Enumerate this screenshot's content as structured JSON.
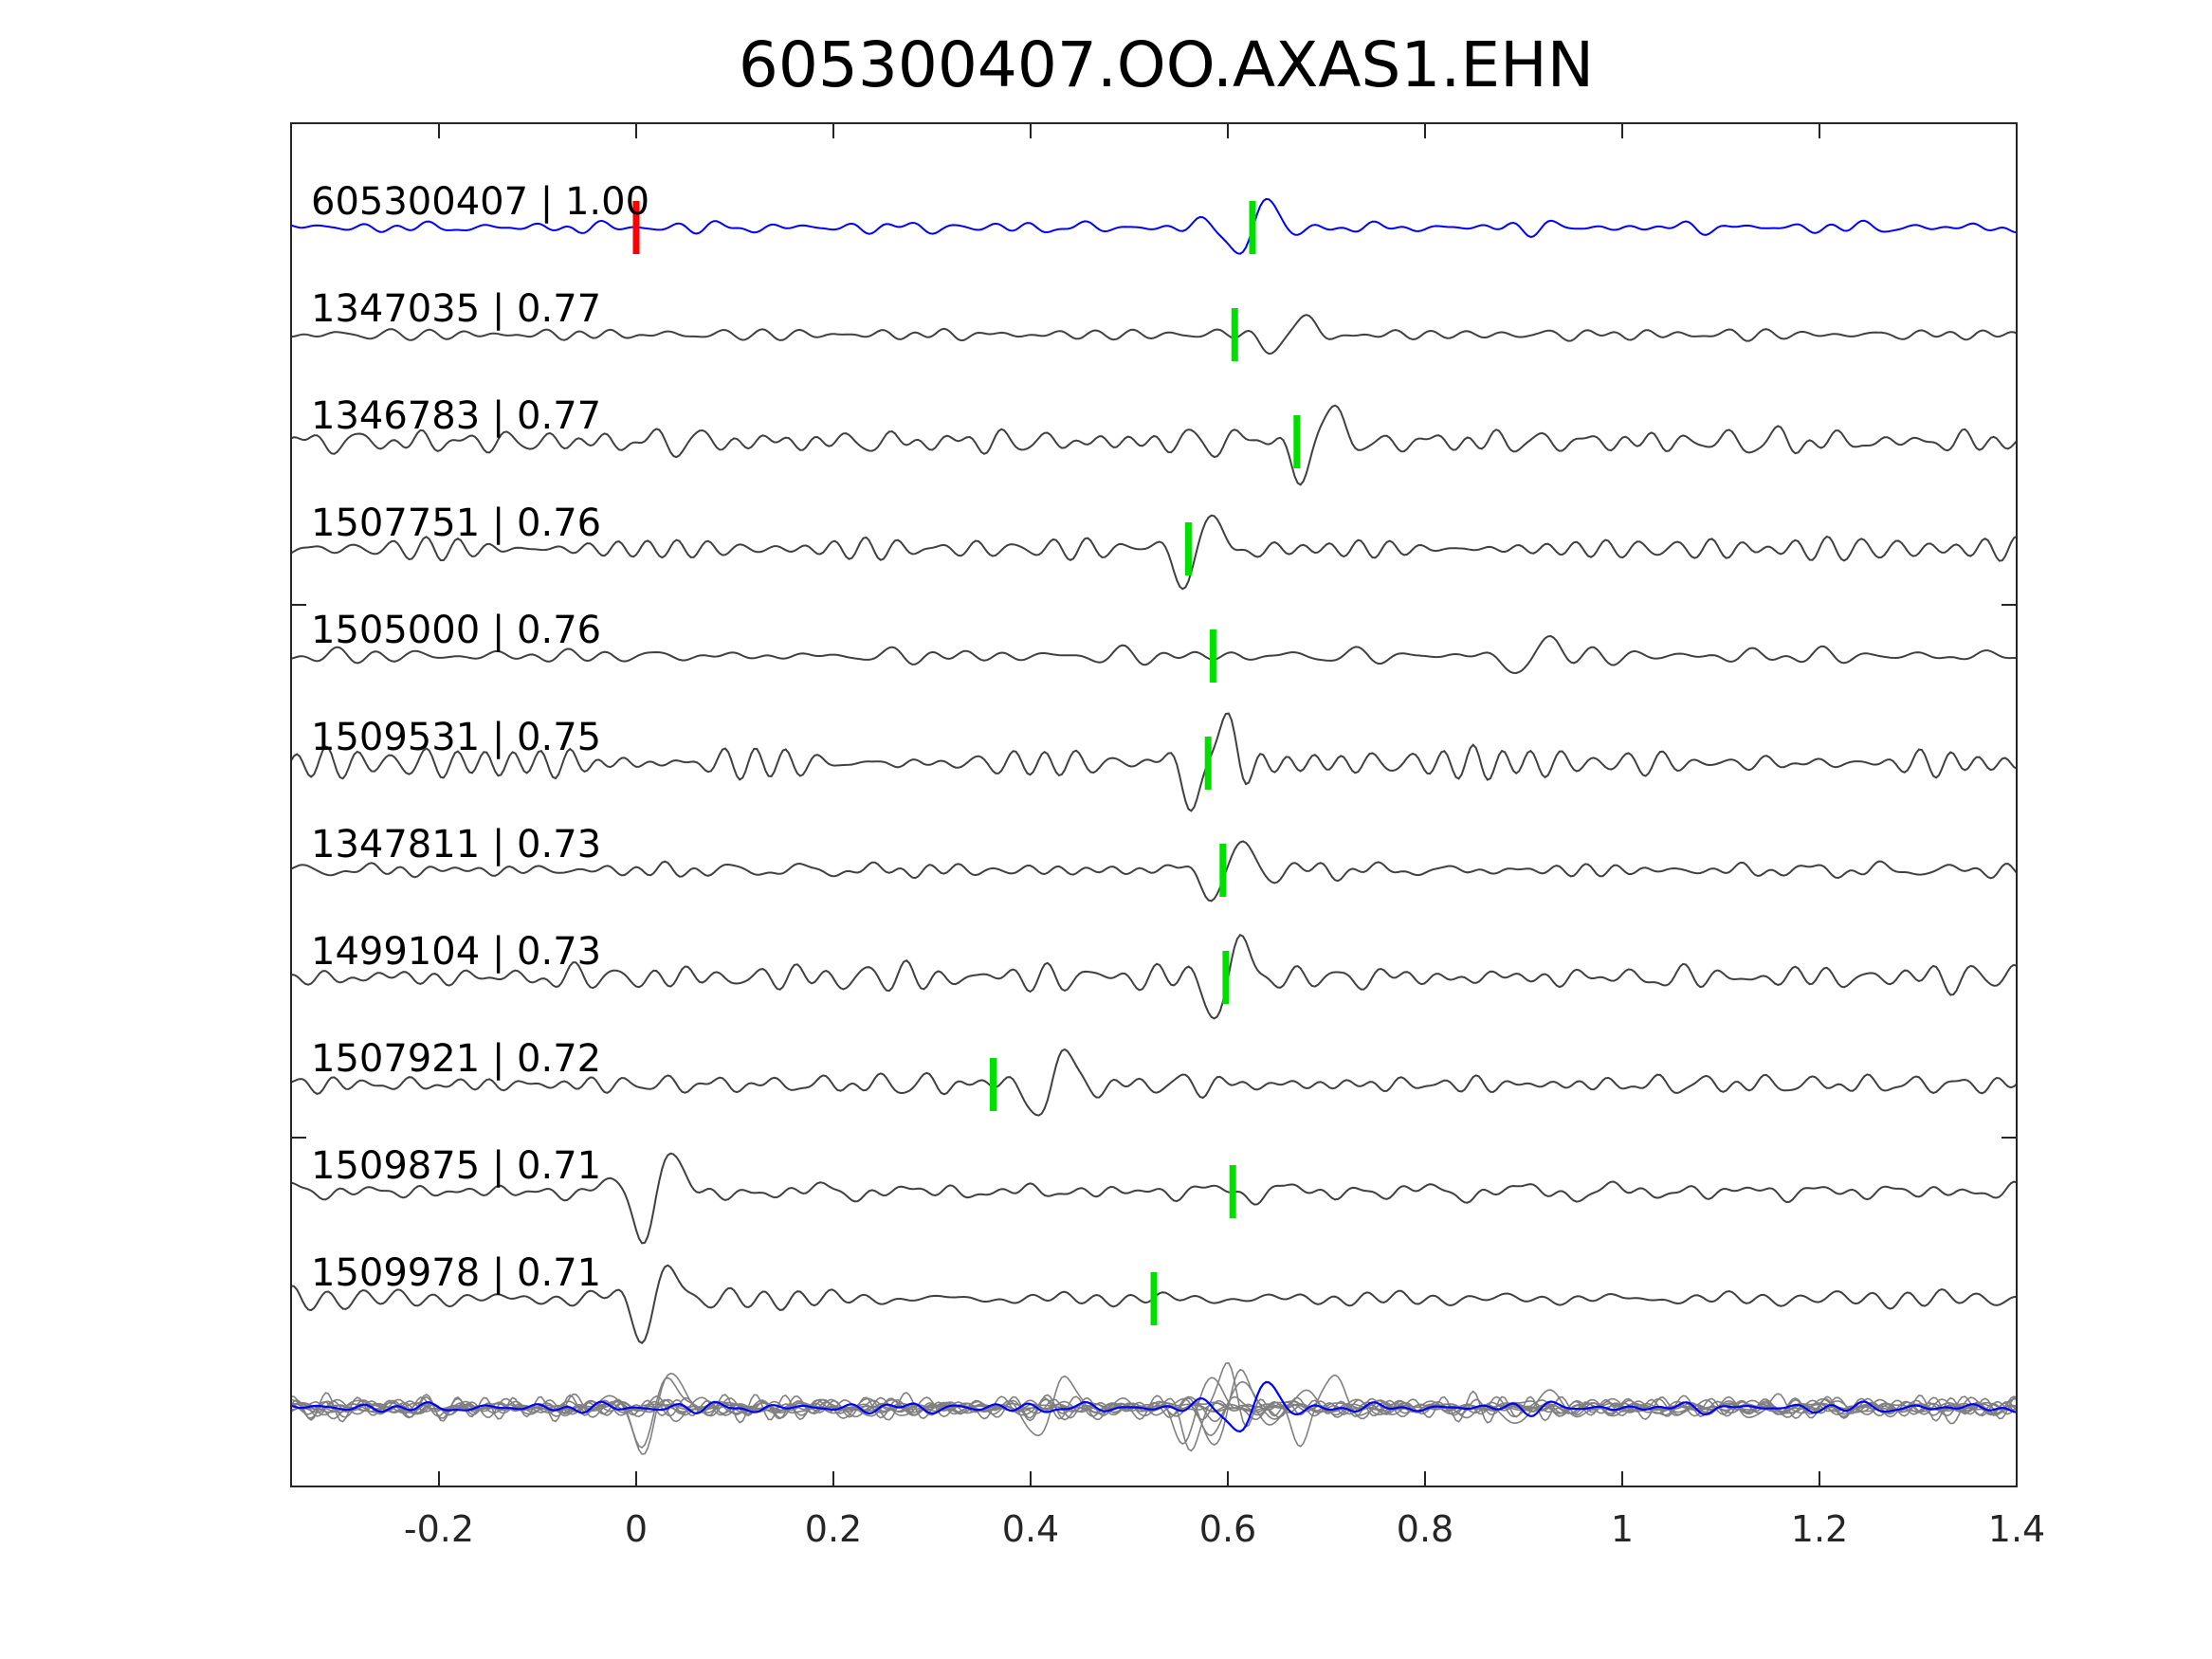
{
  "chart_data": {
    "type": "line",
    "title": "605300407.OO.AXAS1.EHN",
    "xlabel": "",
    "ylabel": "",
    "xlim": [
      -0.35,
      1.4
    ],
    "xticks": [
      -0.2,
      0,
      0.2,
      0.4,
      0.6,
      0.8,
      1,
      1.2,
      1.4
    ],
    "xtick_labels": [
      "-0.2",
      "0",
      "0.2",
      "0.4",
      "0.6",
      "0.8",
      "1",
      "1.2",
      "1.4"
    ],
    "grid": false,
    "colors": {
      "template": "#0000ff",
      "trace": "#404040",
      "stack": "#808080",
      "reference_pick": "#ff0000",
      "detection_pick": "#00e000"
    },
    "series": [
      {
        "event": "605300407",
        "cc": "1.00",
        "label": "605300407 | 1.00",
        "color": "#0000ff",
        "pick": 0.625,
        "ref_pick": 0.0,
        "seed": 7,
        "amp": 0.55,
        "burst": 0.625
      },
      {
        "event": "1347035",
        "cc": "0.77",
        "label": "1347035 | 0.77",
        "color": "#404040",
        "pick": 0.607,
        "seed": 11,
        "amp": 0.45,
        "burst": 0.66
      },
      {
        "event": "1346783",
        "cc": "0.77",
        "label": "1346783 | 0.77",
        "color": "#404040",
        "pick": 0.67,
        "seed": 19,
        "amp": 0.9,
        "burst": 0.69
      },
      {
        "event": "1507751",
        "cc": "0.76",
        "label": "1507751 | 0.76",
        "color": "#404040",
        "pick": 0.56,
        "seed": 23,
        "amp": 0.75,
        "burst": 0.57
      },
      {
        "event": "1505000",
        "cc": "0.76",
        "label": "1505000 | 0.76",
        "color": "#404040",
        "pick": 0.585,
        "seed": 31,
        "amp": 0.5,
        "burst": 0.91
      },
      {
        "event": "1509531",
        "cc": "0.75",
        "label": "1509531 | 0.75",
        "color": "#404040",
        "pick": 0.58,
        "seed": 37,
        "amp": 0.9,
        "burst": 0.58
      },
      {
        "event": "1347811",
        "cc": "0.73",
        "label": "1347811 | 0.73",
        "color": "#404040",
        "pick": 0.595,
        "seed": 41,
        "amp": 0.6,
        "burst": 0.6
      },
      {
        "event": "1499104",
        "cc": "0.73",
        "label": "1499104 | 0.73",
        "color": "#404040",
        "pick": 0.598,
        "seed": 43,
        "amp": 0.9,
        "burst": 0.6
      },
      {
        "event": "1507921",
        "cc": "0.72",
        "label": "1507921 | 0.72",
        "color": "#404040",
        "pick": 0.362,
        "seed": 47,
        "amp": 0.7,
        "burst": 0.42
      },
      {
        "event": "1509875",
        "cc": "0.71",
        "label": "1509875 | 0.71",
        "color": "#404040",
        "pick": 0.605,
        "seed": 53,
        "amp": 0.85,
        "burst": 0.02
      },
      {
        "event": "1509978",
        "cc": "0.71",
        "label": "1509978 | 0.71",
        "color": "#404040",
        "pick": 0.525,
        "seed": 59,
        "amp": 0.8,
        "burst": 0.02
      }
    ]
  }
}
